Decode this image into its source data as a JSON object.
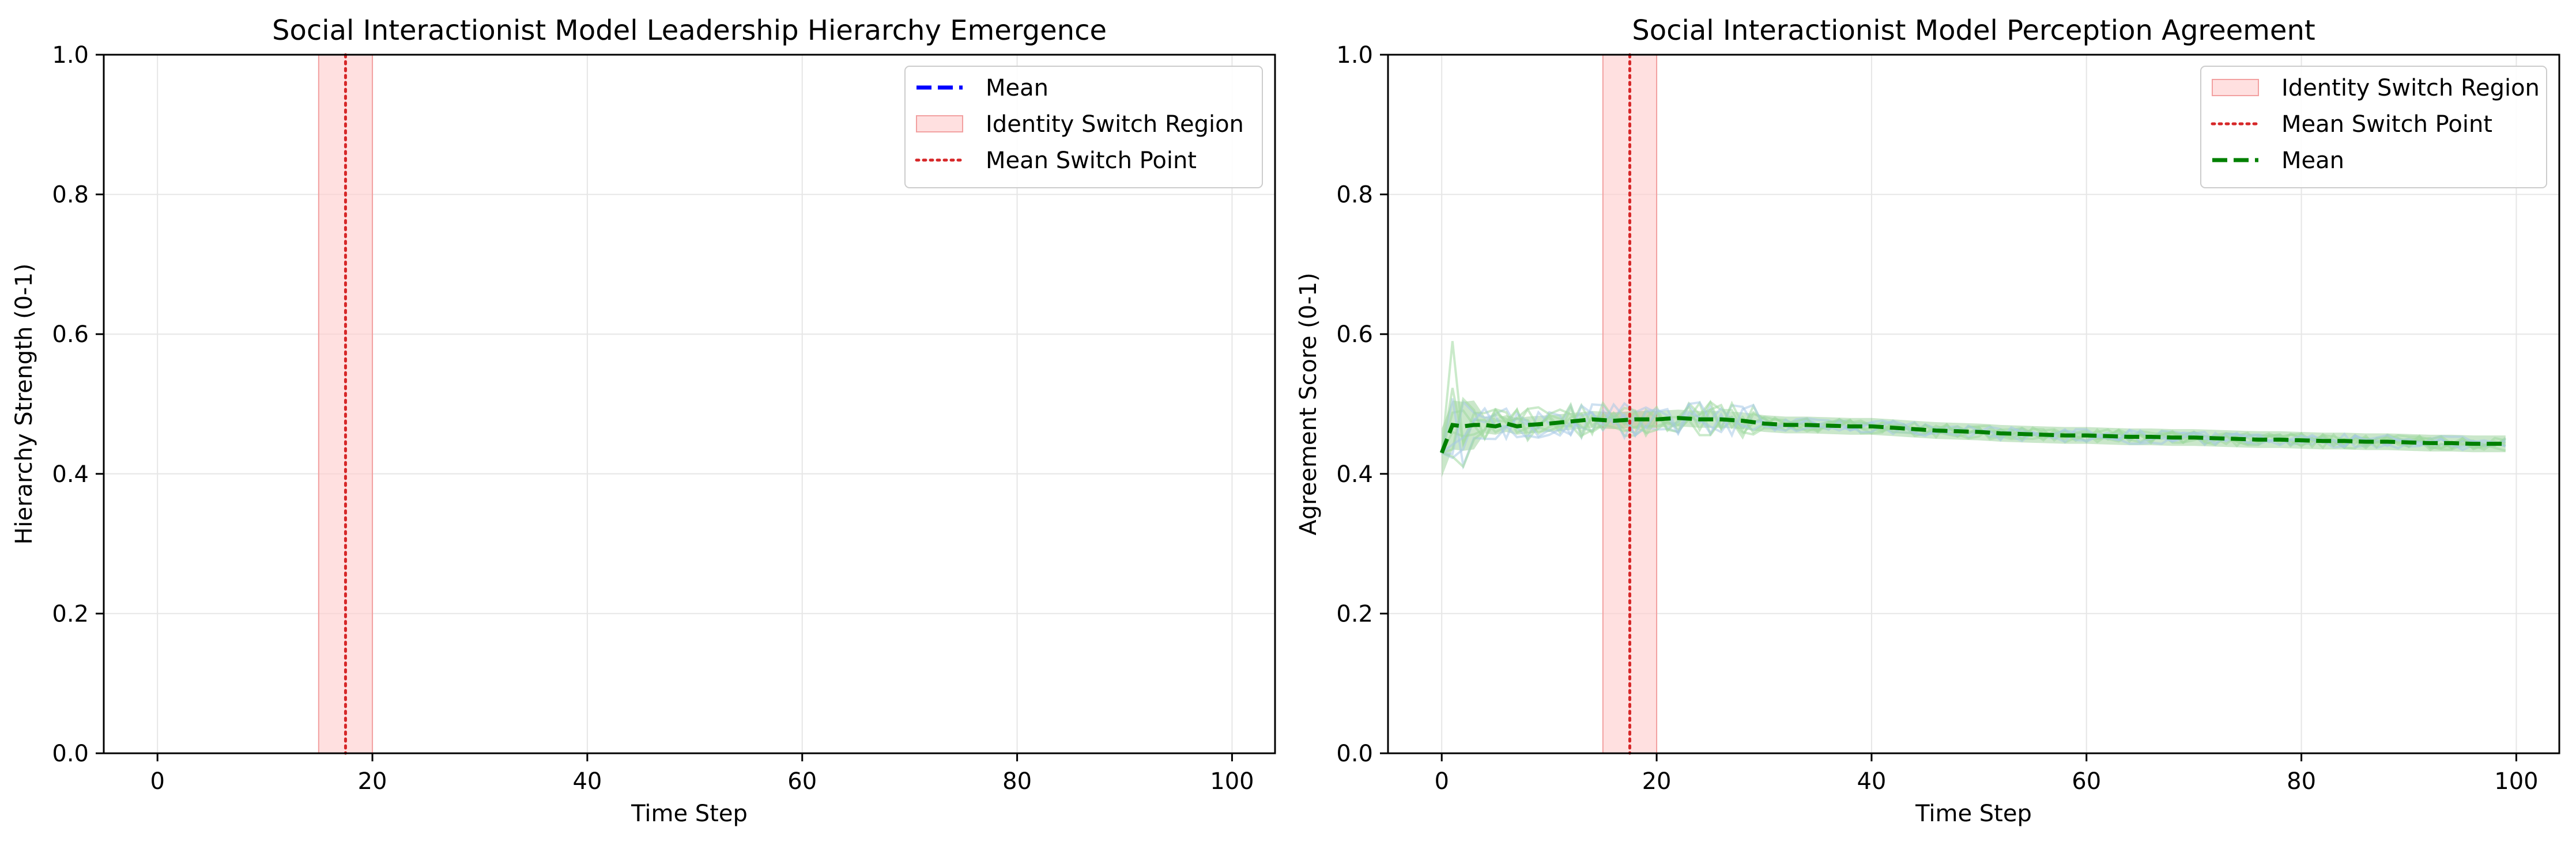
{
  "colors": {
    "mean_blue": "#0000ff",
    "mean_green": "#008000",
    "switch_line": "#d62728",
    "switch_region": "#ffcccc",
    "grid": "#e6e6e6",
    "run_green": "#9fd89f",
    "run_blue": "#a6c8e6",
    "band_green": "#2ca02c"
  },
  "chart_data": [
    {
      "type": "line",
      "title": "Social Interactionist Model Leadership Hierarchy Emergence",
      "xlabel": "Time Step",
      "ylabel": "Hierarchy Strength (0-1)",
      "xlim": [
        -5,
        104
      ],
      "ylim": [
        0,
        1
      ],
      "xticks": [
        0,
        20,
        40,
        60,
        80,
        100
      ],
      "yticks": [
        0.0,
        0.2,
        0.4,
        0.6,
        0.8,
        1.0
      ],
      "ytick_labels": [
        "0.0",
        "0.2",
        "0.4",
        "0.6",
        "0.8",
        "1.0"
      ],
      "grid": true,
      "legend_position": "top-right",
      "legend": [
        {
          "label": "Mean",
          "kind": "dashed-line",
          "color": "#0000ff"
        },
        {
          "label": "Identity Switch Region",
          "kind": "patch",
          "color": "#ffcccc"
        },
        {
          "label": "Mean Switch Point",
          "kind": "dotted-line",
          "color": "#d62728"
        }
      ],
      "switch_region": [
        15,
        20
      ],
      "mean_switch_point": 17.5,
      "series": []
    },
    {
      "type": "line",
      "title": "Social Interactionist Model Perception Agreement",
      "xlabel": "Time Step",
      "ylabel": "Agreement Score (0-1)",
      "xlim": [
        -5,
        104
      ],
      "ylim": [
        0,
        1
      ],
      "xticks": [
        0,
        20,
        40,
        60,
        80,
        100
      ],
      "yticks": [
        0.0,
        0.2,
        0.4,
        0.6,
        0.8,
        1.0
      ],
      "ytick_labels": [
        "0.0",
        "0.2",
        "0.4",
        "0.6",
        "0.8",
        "1.0"
      ],
      "grid": true,
      "legend_position": "top-right",
      "legend": [
        {
          "label": "Identity Switch Region",
          "kind": "patch",
          "color": "#ffcccc"
        },
        {
          "label": "Mean Switch Point",
          "kind": "dotted-line",
          "color": "#d62728"
        },
        {
          "label": "Mean",
          "kind": "dashed-line",
          "color": "#008000"
        }
      ],
      "switch_region": [
        15,
        20
      ],
      "mean_switch_point": 17.5,
      "series": [
        {
          "name": "Mean",
          "x": [
            0,
            1,
            2,
            3,
            4,
            5,
            6,
            7,
            8,
            10,
            12,
            14,
            16,
            18,
            20,
            22,
            24,
            26,
            28,
            30,
            32,
            34,
            36,
            38,
            40,
            42,
            44,
            46,
            48,
            50,
            52,
            54,
            56,
            58,
            60,
            62,
            64,
            66,
            68,
            70,
            72,
            74,
            76,
            78,
            80,
            82,
            84,
            86,
            88,
            90,
            92,
            94,
            96,
            98,
            99
          ],
          "values": [
            0.43,
            0.47,
            0.468,
            0.47,
            0.47,
            0.468,
            0.472,
            0.468,
            0.47,
            0.472,
            0.475,
            0.478,
            0.476,
            0.478,
            0.478,
            0.48,
            0.478,
            0.478,
            0.476,
            0.472,
            0.47,
            0.47,
            0.469,
            0.468,
            0.468,
            0.466,
            0.464,
            0.462,
            0.461,
            0.46,
            0.458,
            0.457,
            0.456,
            0.455,
            0.455,
            0.454,
            0.453,
            0.453,
            0.452,
            0.452,
            0.451,
            0.45,
            0.449,
            0.449,
            0.448,
            0.447,
            0.447,
            0.446,
            0.446,
            0.445,
            0.444,
            0.444,
            0.443,
            0.443,
            0.443
          ]
        }
      ]
    }
  ]
}
